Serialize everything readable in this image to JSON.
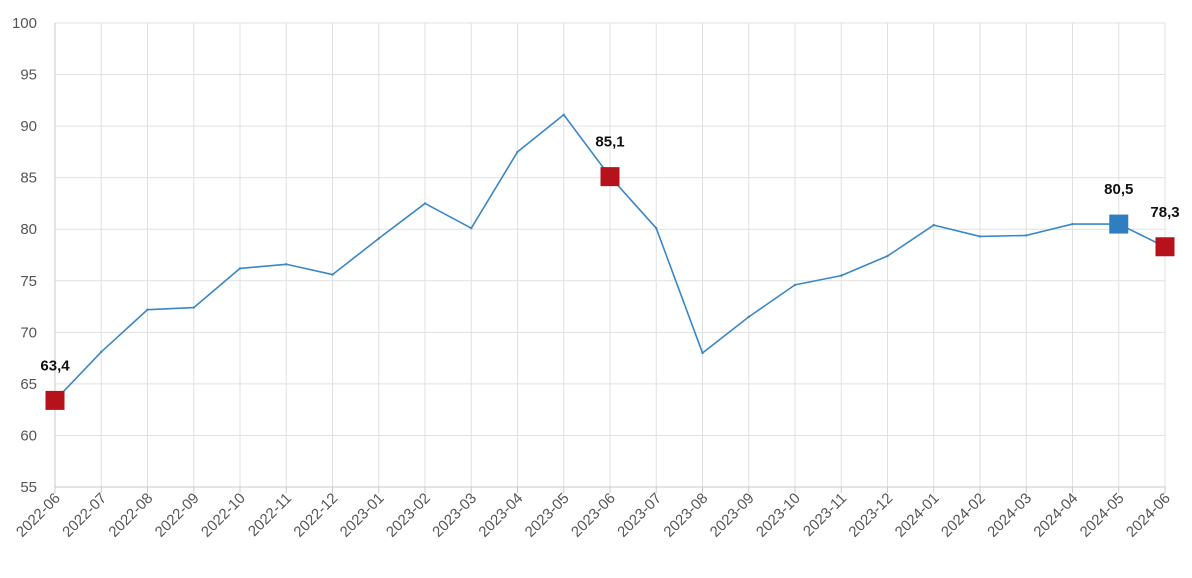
{
  "chart_data": {
    "type": "line",
    "x": [
      "2022-06",
      "2022-07",
      "2022-08",
      "2022-09",
      "2022-10",
      "2022-11",
      "2022-12",
      "2023-01",
      "2023-02",
      "2023-03",
      "2023-04",
      "2023-05",
      "2023-06",
      "2023-07",
      "2023-08",
      "2023-09",
      "2023-10",
      "2023-11",
      "2023-12",
      "2024-01",
      "2024-02",
      "2024-03",
      "2024-04",
      "2024-05",
      "2024-06"
    ],
    "series": [
      {
        "values": [
          63.4,
          68.1,
          72.2,
          72.4,
          76.2,
          76.6,
          75.6,
          79.1,
          82.5,
          80.1,
          87.5,
          91.1,
          85.1,
          80.1,
          68.0,
          71.5,
          74.6,
          75.5,
          77.4,
          80.4,
          79.3,
          79.4,
          80.5,
          80.5,
          78.3
        ],
        "color": "#3a87c8"
      }
    ],
    "ylim": [
      55,
      100
    ],
    "yticks": [
      55,
      60,
      65,
      70,
      75,
      80,
      85,
      90,
      95,
      100
    ],
    "grid": true,
    "highlights": [
      {
        "index": 0,
        "label": "63,4",
        "color": "#b5121b"
      },
      {
        "index": 12,
        "label": "85,1",
        "color": "#b5121b"
      },
      {
        "index": 23,
        "label": "80,5",
        "color": "#2f7fc0"
      },
      {
        "index": 24,
        "label": "78,3",
        "color": "#b5121b"
      }
    ]
  }
}
